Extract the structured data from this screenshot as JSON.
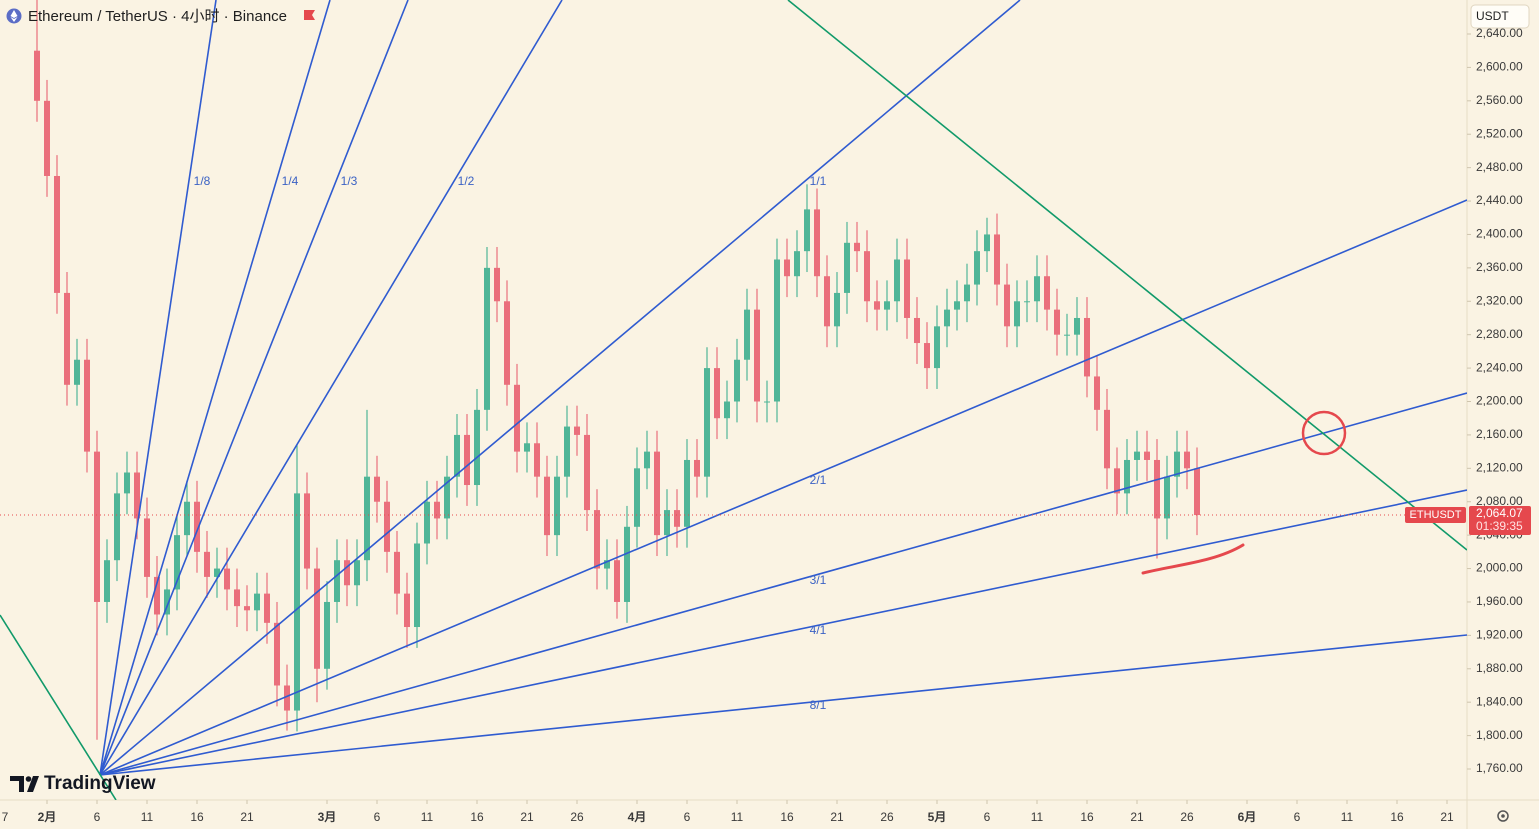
{
  "chart_data": {
    "type": "candlestick",
    "title": "Ethereum / TetherUS · 4小时 · Binance",
    "currency": "USDT",
    "symbol": "ETHUSDT",
    "last_price_label": "2,064.07",
    "countdown": "01:39:35",
    "watermark": "TradingView",
    "fan_labels": [
      "1/8",
      "1/4",
      "1/3",
      "1/2",
      "1/1",
      "2/1",
      "3/1",
      "4/1",
      "8/1"
    ],
    "up_color": "#4fb597",
    "down_color": "#ea6f7c",
    "x": [
      31,
      32,
      33,
      34,
      35,
      36,
      37,
      38,
      39,
      40,
      41,
      42,
      43,
      44,
      45,
      46,
      47,
      48,
      49,
      50,
      51,
      52,
      53,
      54,
      55,
      56,
      57,
      58,
      59,
      60,
      61,
      62,
      63,
      64,
      65,
      66,
      67,
      68,
      69,
      70,
      71,
      72,
      73,
      74,
      75,
      76,
      77,
      78,
      79,
      80,
      81,
      82,
      83,
      84,
      85,
      86,
      87,
      88,
      89,
      90,
      91,
      92,
      93,
      94,
      95,
      96,
      97,
      98,
      99,
      100,
      101,
      102,
      103,
      104,
      105,
      106,
      107,
      108,
      109,
      110,
      111,
      112,
      113,
      114,
      115,
      116,
      117,
      118,
      119,
      120,
      121,
      122,
      123,
      124,
      125,
      126,
      127,
      128,
      129,
      130,
      131,
      132,
      133,
      134,
      135,
      136,
      137,
      138,
      139,
      140,
      141,
      142,
      143,
      144,
      145,
      146,
      147
    ],
    "open": [
      2620,
      2560,
      2470,
      2330,
      2220,
      2250,
      2140,
      1960,
      2010,
      2090,
      2115,
      2060,
      1990,
      1945,
      1975,
      2040,
      2080,
      2020,
      1990,
      2000,
      1975,
      1955,
      1950,
      1970,
      1935,
      1860,
      1830,
      2090,
      2000,
      1880,
      1960,
      2010,
      1980,
      2010,
      2110,
      2080,
      2020,
      1970,
      1930,
      2030,
      2080,
      2060,
      2110,
      2160,
      2100,
      2190,
      2360,
      2320,
      2220,
      2140,
      2150,
      2110,
      2040,
      2110,
      2170,
      2160,
      2070,
      2000,
      2010,
      1960,
      2050,
      2120,
      2140,
      2040,
      2070,
      2050,
      2130,
      2110,
      2240,
      2180,
      2200,
      2250,
      2310,
      2200,
      2200,
      2370,
      2350,
      2380,
      2430,
      2350,
      2290,
      2330,
      2390,
      2380,
      2320,
      2310,
      2320,
      2370,
      2300,
      2270,
      2240,
      2290,
      2310,
      2320,
      2340,
      2380,
      2400,
      2340,
      2290,
      2320,
      2320,
      2350,
      2310,
      2280,
      2280,
      2300,
      2230,
      2190,
      2120,
      2090,
      2130,
      2140,
      2130,
      2060,
      2110,
      2140,
      2120
    ],
    "high": [
      2700,
      2585,
      2495,
      2355,
      2275,
      2275,
      2165,
      2035,
      2115,
      2140,
      2140,
      2085,
      2015,
      2000,
      2065,
      2105,
      2105,
      2045,
      2025,
      2025,
      2000,
      1980,
      1995,
      1995,
      1960,
      1885,
      2148,
      2115,
      2025,
      1985,
      2035,
      2035,
      2035,
      2190,
      2135,
      2105,
      2045,
      1995,
      2055,
      2105,
      2105,
      2135,
      2185,
      2185,
      2215,
      2385,
      2385,
      2345,
      2245,
      2175,
      2175,
      2135,
      2135,
      2195,
      2195,
      2185,
      2095,
      2035,
      2035,
      2075,
      2145,
      2165,
      2165,
      2095,
      2095,
      2155,
      2155,
      2265,
      2265,
      2225,
      2275,
      2335,
      2335,
      2225,
      2395,
      2395,
      2405,
      2460,
      2455,
      2375,
      2355,
      2415,
      2415,
      2405,
      2345,
      2345,
      2395,
      2395,
      2325,
      2295,
      2315,
      2335,
      2345,
      2365,
      2405,
      2420,
      2425,
      2365,
      2345,
      2345,
      2375,
      2375,
      2335,
      2305,
      2325,
      2325,
      2255,
      2215,
      2145,
      2155,
      2165,
      2165,
      2155,
      2135,
      2165,
      2165,
      2145
    ],
    "low": [
      2535,
      2445,
      2305,
      2195,
      2195,
      2115,
      1795,
      1935,
      1985,
      2065,
      2035,
      1965,
      1920,
      1920,
      1950,
      2015,
      1995,
      1965,
      1965,
      1950,
      1930,
      1925,
      1925,
      1910,
      1835,
      1806,
      1805,
      1975,
      1840,
      1855,
      1935,
      1955,
      1955,
      1985,
      2055,
      1995,
      1945,
      1905,
      1905,
      2005,
      2035,
      2035,
      2085,
      2075,
      2075,
      2165,
      2295,
      2195,
      2115,
      2115,
      2085,
      2015,
      2015,
      2085,
      2135,
      2045,
      1975,
      1975,
      1940,
      1935,
      2025,
      2095,
      2015,
      2015,
      2025,
      2025,
      2085,
      2085,
      2155,
      2155,
      2175,
      2225,
      2175,
      2175,
      2175,
      2325,
      2325,
      2355,
      2325,
      2265,
      2265,
      2305,
      2355,
      2295,
      2285,
      2285,
      2295,
      2275,
      2245,
      2215,
      2215,
      2265,
      2285,
      2295,
      2315,
      2355,
      2315,
      2265,
      2265,
      2295,
      2295,
      2285,
      2255,
      2255,
      2255,
      2205,
      2165,
      2095,
      2065,
      2065,
      2105,
      2105,
      2012,
      2035,
      2085,
      2095,
      2040
    ],
    "close": [
      2560,
      2470,
      2330,
      2220,
      2250,
      2140,
      1960,
      2010,
      2090,
      2115,
      2060,
      1990,
      1945,
      1975,
      2040,
      2080,
      2020,
      1990,
      2000,
      1975,
      1955,
      1950,
      1970,
      1935,
      1860,
      1830,
      2090,
      2000,
      1880,
      1960,
      2010,
      1980,
      2010,
      2110,
      2080,
      2020,
      1970,
      1930,
      2030,
      2080,
      2060,
      2110,
      2160,
      2100,
      2190,
      2360,
      2320,
      2220,
      2140,
      2150,
      2110,
      2040,
      2110,
      2170,
      2160,
      2070,
      2000,
      2010,
      1960,
      2050,
      2120,
      2140,
      2040,
      2070,
      2050,
      2130,
      2110,
      2240,
      2180,
      2200,
      2250,
      2310,
      2200,
      2200,
      2370,
      2350,
      2380,
      2430,
      2350,
      2290,
      2330,
      2390,
      2380,
      2320,
      2310,
      2320,
      2370,
      2300,
      2270,
      2240,
      2290,
      2310,
      2320,
      2340,
      2380,
      2400,
      2340,
      2290,
      2320,
      2320,
      2350,
      2310,
      2280,
      2280,
      2300,
      2230,
      2190,
      2120,
      2090,
      2130,
      2140,
      2130,
      2060,
      2110,
      2140,
      2120,
      2064.07
    ],
    "xlim": [
      27.3,
      174
    ],
    "xticks": [
      {
        "value": 27,
        "label": "7"
      },
      {
        "value": 32,
        "label": "2月"
      },
      {
        "value": 37,
        "label": "6"
      },
      {
        "value": 42,
        "label": "11"
      },
      {
        "value": 47,
        "label": "16"
      },
      {
        "value": 52,
        "label": "21"
      },
      {
        "value": 60,
        "label": "3月"
      },
      {
        "value": 65,
        "label": "6"
      },
      {
        "value": 70,
        "label": "11"
      },
      {
        "value": 75,
        "label": "16"
      },
      {
        "value": 80,
        "label": "21"
      },
      {
        "value": 85,
        "label": "26"
      },
      {
        "value": 91,
        "label": "4月"
      },
      {
        "value": 96,
        "label": "6"
      },
      {
        "value": 101,
        "label": "11"
      },
      {
        "value": 106,
        "label": "16"
      },
      {
        "value": 111,
        "label": "21"
      },
      {
        "value": 116,
        "label": "26"
      },
      {
        "value": 121,
        "label": "5月"
      },
      {
        "value": 126,
        "label": "6"
      },
      {
        "value": 131,
        "label": "11"
      },
      {
        "value": 136,
        "label": "16"
      },
      {
        "value": 141,
        "label": "21"
      },
      {
        "value": 146,
        "label": "26"
      },
      {
        "value": 152,
        "label": "6月"
      },
      {
        "value": 157,
        "label": "6"
      },
      {
        "value": 162,
        "label": "11"
      },
      {
        "value": 167,
        "label": "16"
      },
      {
        "value": 172,
        "label": "21"
      }
    ],
    "ylim": [
      1722.9,
      2680.7
    ],
    "yticks": [
      {
        "value": 1760,
        "label": "1,760.00"
      },
      {
        "value": 1800,
        "label": "1,800.00"
      },
      {
        "value": 1840,
        "label": "1,840.00"
      },
      {
        "value": 1880,
        "label": "1,880.00"
      },
      {
        "value": 1920,
        "label": "1,920.00"
      },
      {
        "value": 1960,
        "label": "1,960.00"
      },
      {
        "value": 2000,
        "label": "2,000.00"
      },
      {
        "value": 2040,
        "label": "2,040.00"
      },
      {
        "value": 2080,
        "label": "2,080.00"
      },
      {
        "value": 2120,
        "label": "2,120.00"
      },
      {
        "value": 2160,
        "label": "2,160.00"
      },
      {
        "value": 2200,
        "label": "2,200.00"
      },
      {
        "value": 2240,
        "label": "2,240.00"
      },
      {
        "value": 2280,
        "label": "2,280.00"
      },
      {
        "value": 2320,
        "label": "2,320.00"
      },
      {
        "value": 2360,
        "label": "2,360.00"
      },
      {
        "value": 2400,
        "label": "2,400.00"
      },
      {
        "value": 2440,
        "label": "2,440.00"
      },
      {
        "value": 2480,
        "label": "2,480.00"
      },
      {
        "value": 2520,
        "label": "2,520.00"
      },
      {
        "value": 2560,
        "label": "2,560.00"
      },
      {
        "value": 2600,
        "label": "2,600.00"
      },
      {
        "value": 2640,
        "label": "2,640.00"
      }
    ]
  }
}
